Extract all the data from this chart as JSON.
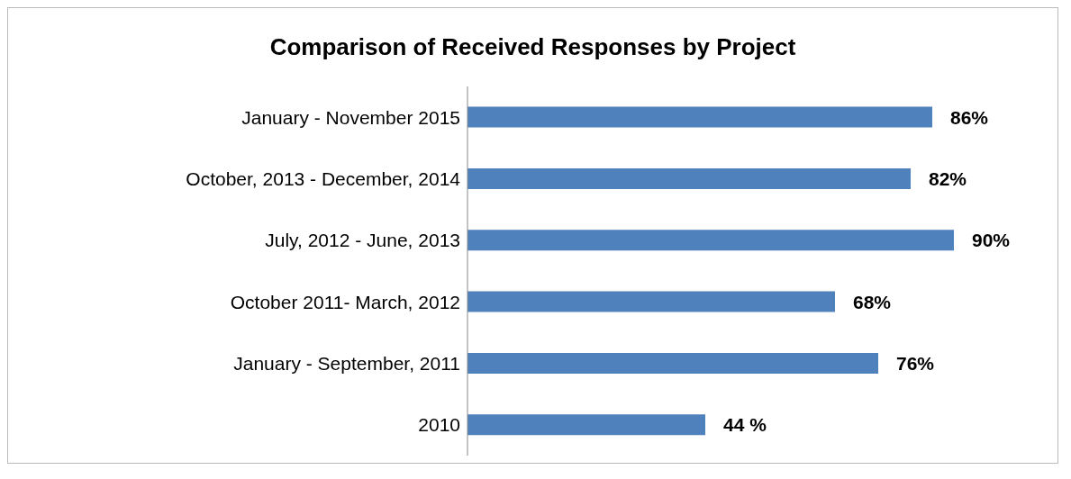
{
  "chart_data": {
    "type": "bar",
    "orientation": "horizontal",
    "title": "Comparison of Received Responses by Project",
    "categories": [
      "January - November 2015",
      "October, 2013 - December, 2014",
      "July, 2012 - June, 2013",
      "October 2011- March, 2012",
      "January - September, 2011",
      "2010"
    ],
    "values": [
      86,
      82,
      90,
      68,
      76,
      44
    ],
    "color": "#4f81bd",
    "value_labels": [
      "86%",
      "82%",
      "90%",
      "68%",
      "76%",
      "44 %"
    ]
  }
}
